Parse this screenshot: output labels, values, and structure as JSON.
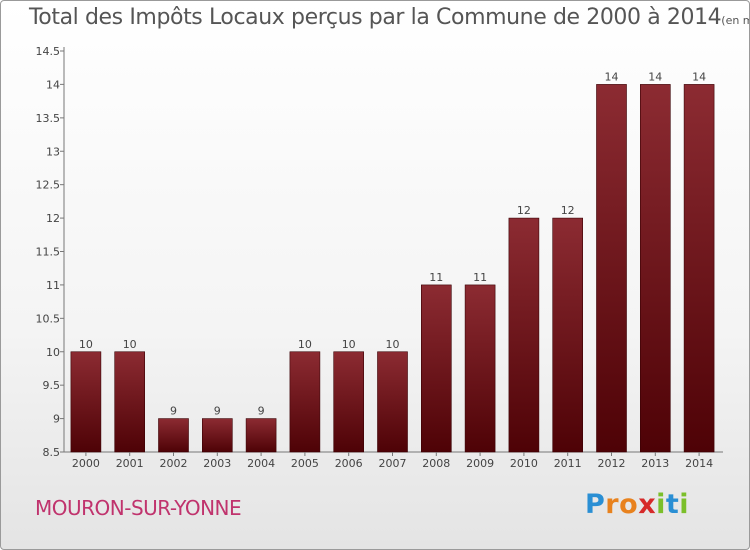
{
  "chart_data": {
    "type": "bar",
    "title": "Total des Impôts Locaux perçus par la Commune de 2000 à 2014",
    "subtitle": "(en milliers d'€)",
    "categories": [
      "2000",
      "2001",
      "2002",
      "2003",
      "2004",
      "2005",
      "2006",
      "2007",
      "2008",
      "2009",
      "2010",
      "2011",
      "2012",
      "2013",
      "2014"
    ],
    "values": [
      10,
      10,
      9,
      9,
      9,
      10,
      10,
      10,
      11,
      11,
      12,
      12,
      14,
      14,
      14
    ],
    "ylim": [
      8.5,
      14.5
    ],
    "yticks": [
      8.5,
      9,
      9.5,
      10,
      10.5,
      11,
      11.5,
      12,
      12.5,
      13,
      13.5,
      14,
      14.5
    ],
    "ytick_labels": [
      "8.5",
      "9",
      "9.5",
      "10",
      "10.5",
      "11",
      "11.5",
      "12",
      "12.5",
      "13",
      "13.5",
      "14",
      "14.5"
    ],
    "xlabel": "",
    "ylabel": "",
    "grid": false,
    "bar_color": "#7a1a22"
  },
  "footer": {
    "commune": "MOURON-SUR-YONNE",
    "logo_letters": [
      "P",
      "r",
      "o",
      "x",
      "i",
      "t",
      "i"
    ],
    "logo_colors": [
      "#2a8fd4",
      "#e8821e",
      "#e8821e",
      "#d62a2a",
      "#7bbf2a",
      "#2a8fd4",
      "#7bbf2a"
    ]
  }
}
